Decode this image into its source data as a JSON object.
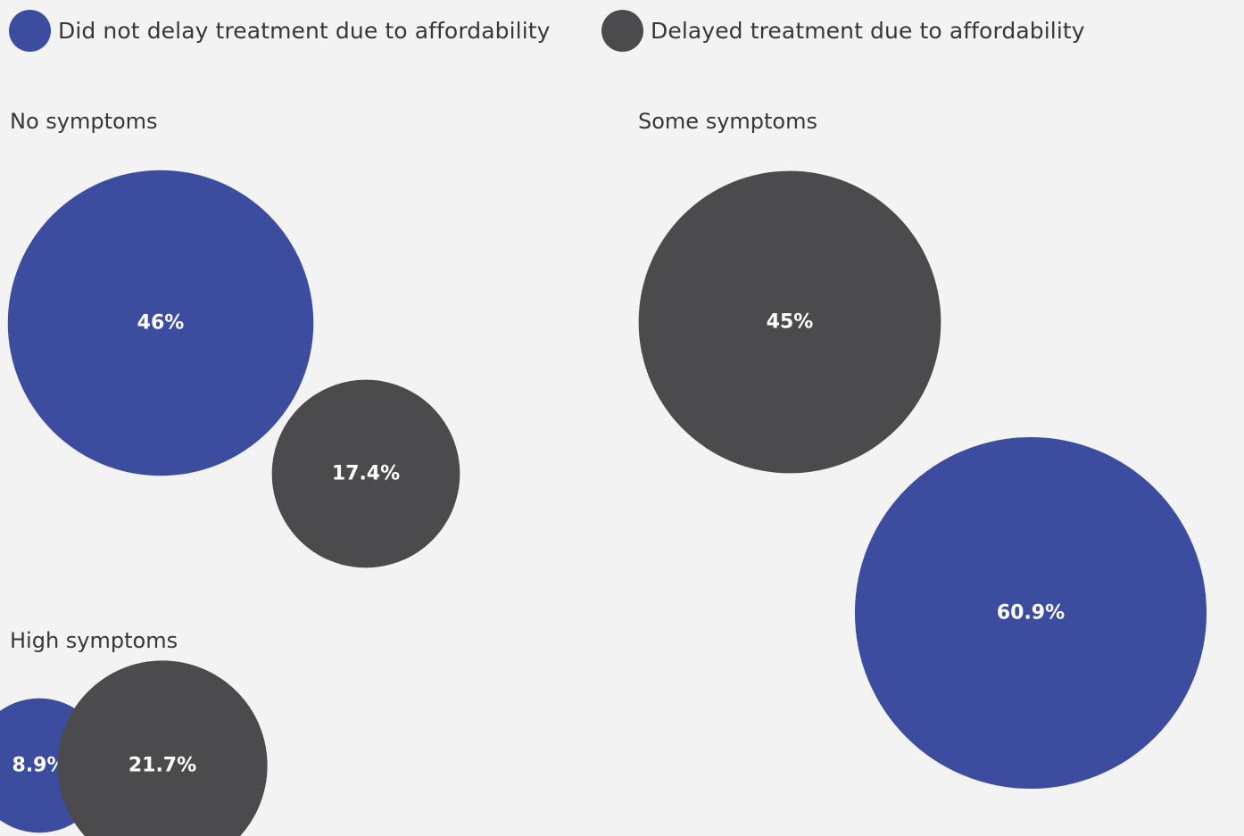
{
  "chart_data": {
    "type": "bubble",
    "legend": {
      "position": "top-left",
      "items": [
        {
          "name": "Did not delay treatment due to affordability",
          "color": "#3c4d9f"
        },
        {
          "name": "Delayed treatment due to affordability",
          "color": "#4b4b4d"
        }
      ]
    },
    "panels": [
      {
        "title": "No symptoms",
        "bubbles": [
          {
            "series": "Did not delay treatment due to affordability",
            "value": 46,
            "label": "46%"
          },
          {
            "series": "Delayed treatment due to affordability",
            "value": 17.4,
            "label": "17.4%"
          }
        ]
      },
      {
        "title": "Some symptoms",
        "bubbles": [
          {
            "series": "Delayed treatment due to affordability",
            "value": 45,
            "label": "45%"
          },
          {
            "series": "Did not delay treatment due to affordability",
            "value": 60.9,
            "label": "60.9%"
          }
        ]
      },
      {
        "title": "High symptoms",
        "bubbles": [
          {
            "series": "Did not delay treatment due to affordability",
            "value": 8.9,
            "label": "8.9%"
          },
          {
            "series": "Delayed treatment due to affordability",
            "value": 21.7,
            "label": "21.7%"
          }
        ]
      }
    ]
  }
}
